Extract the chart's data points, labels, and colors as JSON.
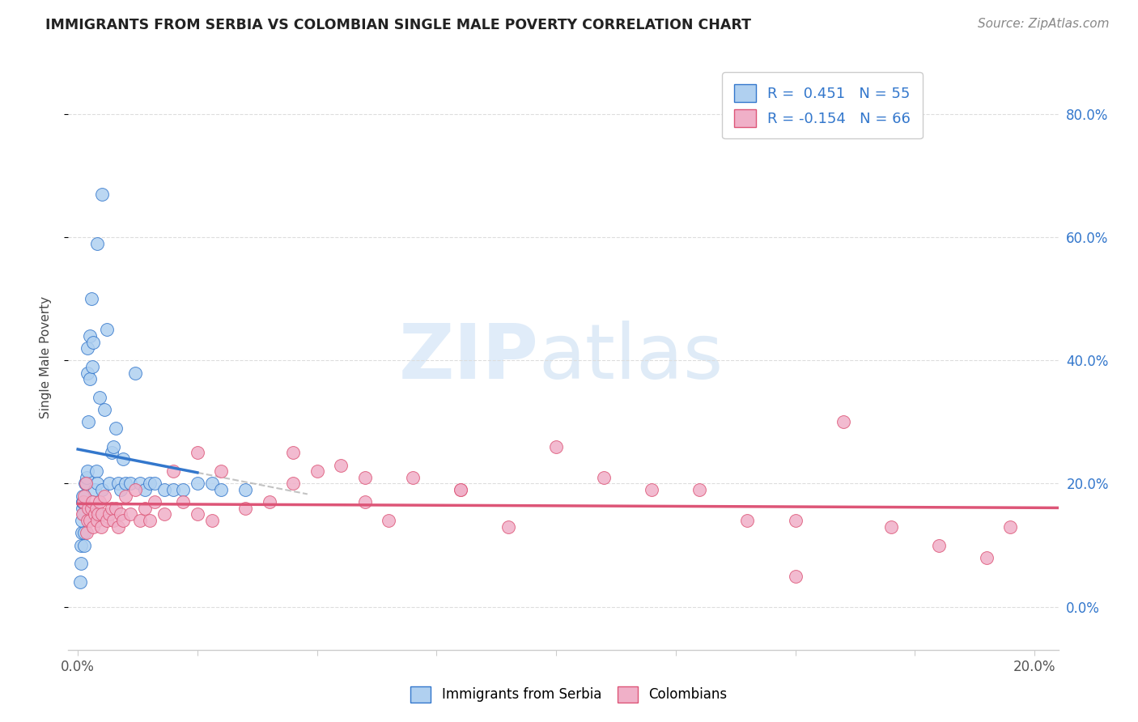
{
  "title": "IMMIGRANTS FROM SERBIA VS COLOMBIAN SINGLE MALE POVERTY CORRELATION CHART",
  "source": "Source: ZipAtlas.com",
  "ylabel": "Single Male Poverty",
  "serbia_R": 0.451,
  "serbia_N": 55,
  "colombia_R": -0.154,
  "colombia_N": 66,
  "serbia_color": "#b0d0f0",
  "serbia_line_color": "#3377cc",
  "colombia_color": "#f0b0c8",
  "colombia_line_color": "#dd5577",
  "xlim_min": -0.002,
  "xlim_max": 0.205,
  "ylim_min": -0.07,
  "ylim_max": 0.88,
  "ytick_vals": [
    0.0,
    0.2,
    0.4,
    0.6,
    0.8
  ],
  "ytick_labels_right": [
    "0.0%",
    "20.0%",
    "40.0%",
    "60.0%",
    "80.0%"
  ],
  "xtick_vals": [
    0.0,
    0.025,
    0.05,
    0.075,
    0.1,
    0.125,
    0.15,
    0.175,
    0.2
  ],
  "xtick_labels": [
    "0.0%",
    "",
    "",
    "",
    "",
    "",
    "",
    "",
    "20.0%"
  ],
  "grid_color": "#dddddd",
  "serbia_x": [
    0.0005,
    0.0006,
    0.0007,
    0.0008,
    0.0009,
    0.001,
    0.001,
    0.001,
    0.001,
    0.0012,
    0.0013,
    0.0014,
    0.0015,
    0.0016,
    0.0018,
    0.002,
    0.002,
    0.002,
    0.0022,
    0.0025,
    0.0025,
    0.0028,
    0.003,
    0.003,
    0.0032,
    0.0035,
    0.0038,
    0.004,
    0.004,
    0.0045,
    0.005,
    0.005,
    0.0055,
    0.006,
    0.0065,
    0.007,
    0.0075,
    0.008,
    0.0085,
    0.009,
    0.0095,
    0.01,
    0.011,
    0.012,
    0.013,
    0.014,
    0.015,
    0.016,
    0.018,
    0.02,
    0.022,
    0.025,
    0.028,
    0.03,
    0.035
  ],
  "serbia_y": [
    0.04,
    0.07,
    0.1,
    0.12,
    0.14,
    0.16,
    0.17,
    0.17,
    0.18,
    0.15,
    0.1,
    0.12,
    0.2,
    0.2,
    0.21,
    0.38,
    0.42,
    0.22,
    0.3,
    0.37,
    0.44,
    0.5,
    0.15,
    0.39,
    0.43,
    0.19,
    0.22,
    0.59,
    0.2,
    0.34,
    0.19,
    0.67,
    0.32,
    0.45,
    0.2,
    0.25,
    0.26,
    0.29,
    0.2,
    0.19,
    0.24,
    0.2,
    0.2,
    0.38,
    0.2,
    0.19,
    0.2,
    0.2,
    0.19,
    0.19,
    0.19,
    0.2,
    0.2,
    0.19,
    0.19
  ],
  "colombia_x": [
    0.001,
    0.0012,
    0.0014,
    0.0016,
    0.0018,
    0.002,
    0.0022,
    0.0025,
    0.0028,
    0.003,
    0.0032,
    0.0035,
    0.0038,
    0.004,
    0.0042,
    0.0045,
    0.0048,
    0.005,
    0.0055,
    0.006,
    0.0065,
    0.007,
    0.0075,
    0.008,
    0.0085,
    0.009,
    0.0095,
    0.01,
    0.011,
    0.012,
    0.013,
    0.014,
    0.015,
    0.016,
    0.018,
    0.02,
    0.022,
    0.025,
    0.028,
    0.03,
    0.035,
    0.04,
    0.045,
    0.05,
    0.055,
    0.06,
    0.065,
    0.07,
    0.08,
    0.09,
    0.1,
    0.11,
    0.13,
    0.14,
    0.15,
    0.16,
    0.17,
    0.18,
    0.19,
    0.195,
    0.025,
    0.045,
    0.06,
    0.08,
    0.12,
    0.15
  ],
  "colombia_y": [
    0.15,
    0.17,
    0.18,
    0.2,
    0.12,
    0.14,
    0.16,
    0.14,
    0.16,
    0.17,
    0.13,
    0.15,
    0.16,
    0.14,
    0.15,
    0.17,
    0.13,
    0.15,
    0.18,
    0.14,
    0.15,
    0.16,
    0.14,
    0.16,
    0.13,
    0.15,
    0.14,
    0.18,
    0.15,
    0.19,
    0.14,
    0.16,
    0.14,
    0.17,
    0.15,
    0.22,
    0.17,
    0.15,
    0.14,
    0.22,
    0.16,
    0.17,
    0.2,
    0.22,
    0.23,
    0.17,
    0.14,
    0.21,
    0.19,
    0.13,
    0.26,
    0.21,
    0.19,
    0.14,
    0.05,
    0.3,
    0.13,
    0.1,
    0.08,
    0.13,
    0.25,
    0.25,
    0.21,
    0.19,
    0.19,
    0.14
  ]
}
